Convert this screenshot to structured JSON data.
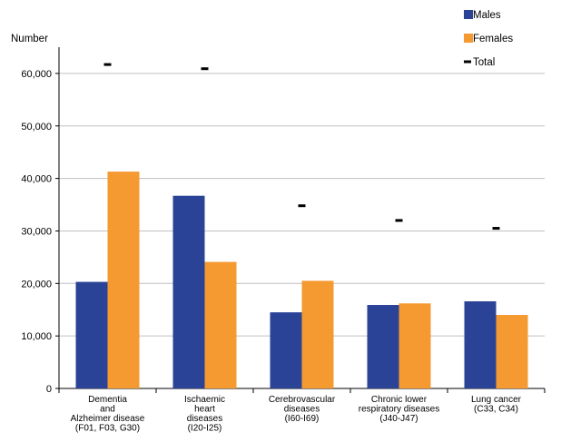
{
  "chart_data": {
    "type": "bar",
    "ylabel": "Number",
    "ylim": [
      0,
      65000
    ],
    "yticks": [
      0,
      10000,
      20000,
      30000,
      40000,
      50000,
      60000
    ],
    "ytick_labels": [
      "0",
      "10,000",
      "20,000",
      "30,000",
      "40,000",
      "50,000",
      "60,000"
    ],
    "grid": true,
    "legend_position": "top-right",
    "categories": [
      [
        "Dementia",
        "and",
        "Alzheimer disease",
        "(F01, F03, G30)"
      ],
      [
        "Ischaemic",
        "heart",
        "diseases",
        "(I20-I25)"
      ],
      [
        "Cerebrovascular",
        "diseases",
        "(I60-I69)"
      ],
      [
        "Chronic lower",
        "respiratory diseases",
        "(J40-J47)"
      ],
      [
        "Lung cancer",
        "(C33, C34)"
      ]
    ],
    "series": [
      {
        "name": "Males",
        "type": "bar",
        "color": "#2B4397",
        "values": [
          20300,
          36700,
          14500,
          15900,
          16600
        ]
      },
      {
        "name": "Females",
        "type": "bar",
        "color": "#F59931",
        "values": [
          41300,
          24100,
          20500,
          16200,
          14000
        ]
      },
      {
        "name": "Total",
        "type": "marker",
        "color": "#000000",
        "values": [
          61700,
          60900,
          34800,
          32000,
          30500
        ]
      }
    ]
  }
}
